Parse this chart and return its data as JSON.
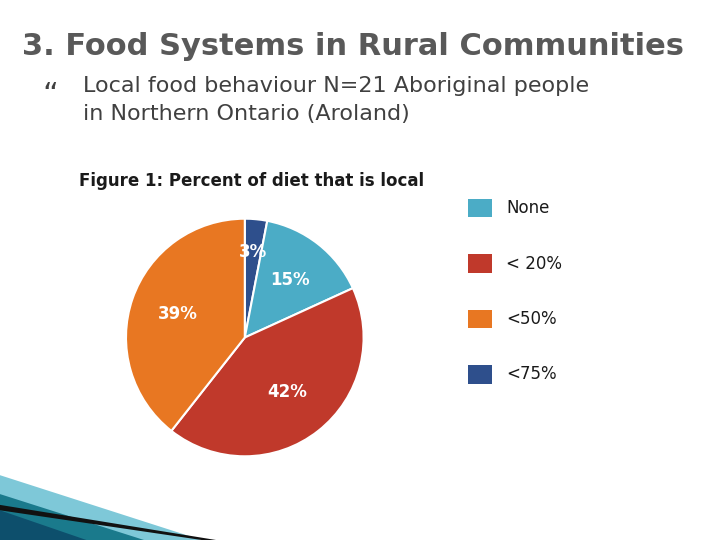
{
  "title": "3. Food Systems in Rural Communities",
  "subtitle_bullet": " Local food behaviour N=21 Aboriginal people\n   in Northern Ontario (Aroland)",
  "bullet_char": "“",
  "figure_title": "Figure 1: Percent of diet that is local",
  "slices": [
    15,
    42,
    39,
    3
  ],
  "labels": [
    "15%",
    "42%",
    "39%",
    "3%"
  ],
  "legend_labels": [
    "None",
    "< 20%",
    "<50%",
    "<75%"
  ],
  "colors": [
    "#4BACC6",
    "#C0392B",
    "#E87722",
    "#2E4F8C"
  ],
  "background_color": "#FFFFFF",
  "title_color": "#595959",
  "title_fontsize": 22,
  "subtitle_fontsize": 16,
  "figure_title_fontsize": 12,
  "label_fontsize": 12,
  "legend_fontsize": 12,
  "deco_color1": "#1A7A8C",
  "deco_color2": "#0D4F6C",
  "deco_color3": "#7EC8D8"
}
